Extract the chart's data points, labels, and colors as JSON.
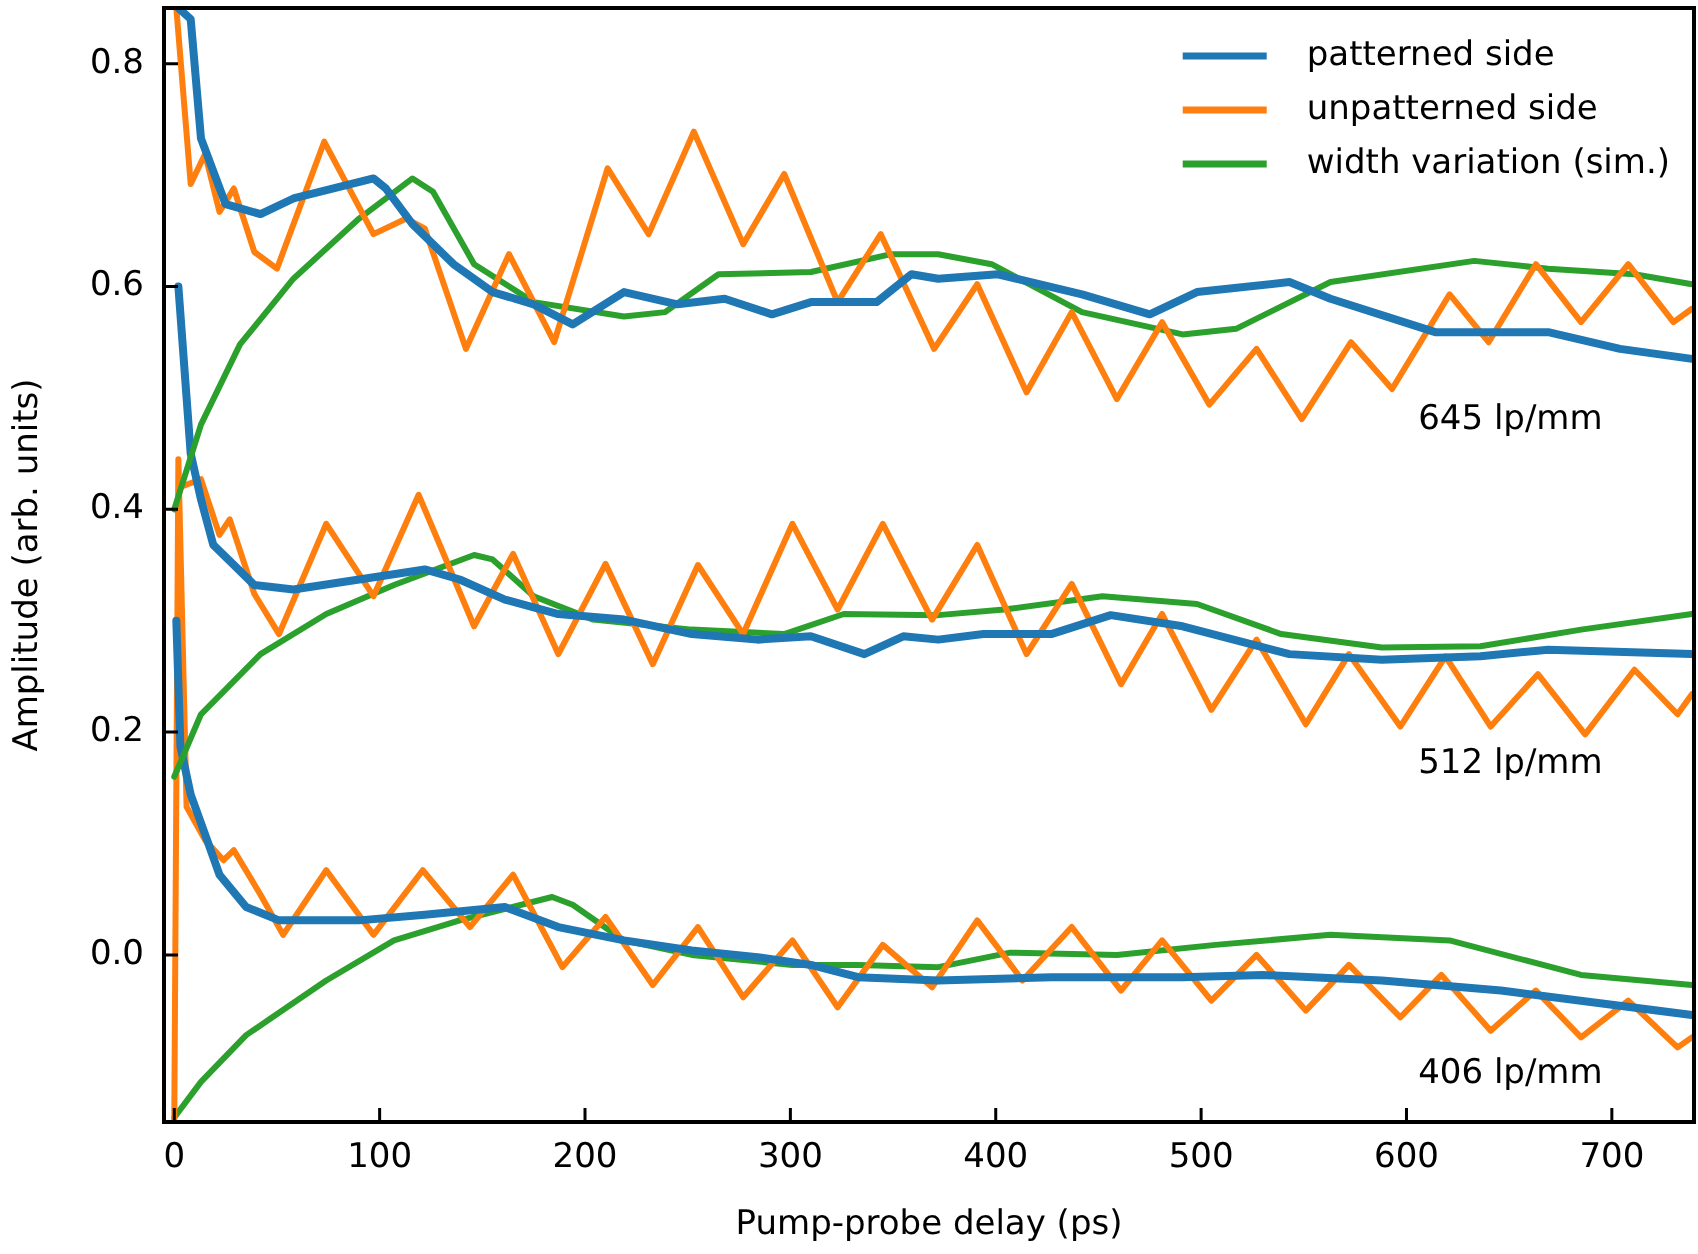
{
  "chart_data": {
    "type": "line",
    "xlabel": "Pump-probe delay (ps)",
    "ylabel": "Amplitude (arb. units)",
    "xlim": [
      -5,
      740
    ],
    "ylim": [
      -0.15,
      0.85
    ],
    "xticks": [
      0,
      100,
      200,
      300,
      400,
      500,
      600,
      700
    ],
    "yticks": [
      {
        "value": 0,
        "label": "0.0"
      },
      0.2,
      0.4,
      0.6,
      0.8
    ],
    "legend": "top right",
    "marker": "none",
    "line_style": "solid",
    "annotations": [
      "645 lp/mm",
      "512 lp/mm",
      "406 lp/mm"
    ],
    "series": [
      {
        "name": "patterned side",
        "color": "#1f77b4",
        "x": [
          2,
          8,
          13,
          25,
          42,
          58,
          97,
          103,
          116,
          136,
          155,
          175,
          194,
          219,
          245,
          268,
          291,
          310,
          342,
          359,
          372,
          401,
          442,
          475,
          498,
          543,
          563,
          614,
          669,
          704,
          739
        ],
        "values": [
          0.85,
          0.84,
          0.733,
          0.674,
          0.665,
          0.679,
          0.697,
          0.688,
          0.656,
          0.62,
          0.595,
          0.584,
          0.566,
          0.595,
          0.584,
          0.589,
          0.575,
          0.586,
          0.586,
          0.611,
          0.607,
          0.611,
          0.593,
          0.575,
          0.595,
          0.604,
          0.589,
          0.559,
          0.559,
          0.544,
          0.535
        ]
      },
      {
        "name": "unpatterned side",
        "color": "#ff7f0e",
        "x": [
          1,
          8,
          15,
          22,
          29,
          39,
          50,
          73,
          97,
          113,
          122,
          142,
          163,
          185,
          211,
          231,
          253,
          277,
          297,
          323,
          344,
          370,
          391,
          415,
          437,
          459,
          481,
          504,
          527,
          549,
          573,
          593,
          621,
          640,
          663,
          685,
          708,
          730,
          739
        ],
        "values": [
          0.85,
          0.692,
          0.719,
          0.667,
          0.688,
          0.631,
          0.616,
          0.73,
          0.647,
          0.661,
          0.652,
          0.544,
          0.629,
          0.55,
          0.706,
          0.647,
          0.739,
          0.638,
          0.701,
          0.586,
          0.647,
          0.544,
          0.602,
          0.505,
          0.577,
          0.499,
          0.568,
          0.494,
          0.544,
          0.481,
          0.55,
          0.508,
          0.593,
          0.55,
          0.62,
          0.568,
          0.62,
          0.568,
          0.58
        ]
      },
      {
        "name": "width variation (sim.)",
        "color": "#2ca02c",
        "x": [
          0,
          13,
          32,
          58,
          90,
          116,
          126,
          146,
          175,
          219,
          239,
          265,
          310,
          349,
          372,
          398,
          442,
          491,
          517,
          563,
          633,
          669,
          711,
          739
        ],
        "values": [
          0.4,
          0.476,
          0.548,
          0.607,
          0.661,
          0.697,
          0.685,
          0.62,
          0.586,
          0.573,
          0.577,
          0.611,
          0.613,
          0.629,
          0.629,
          0.62,
          0.577,
          0.557,
          0.562,
          0.604,
          0.623,
          0.616,
          0.611,
          0.602
        ]
      },
      {
        "color": "#1f77b4",
        "x": [
          2,
          8,
          13,
          19,
          39,
          58,
          90,
          122,
          139,
          161,
          187,
          219,
          252,
          284,
          310,
          336,
          355,
          372,
          394,
          427,
          456,
          491,
          543,
          588,
          636,
          669,
          739
        ],
        "values": [
          0.6,
          0.45,
          0.409,
          0.368,
          0.332,
          0.328,
          0.337,
          0.346,
          0.337,
          0.319,
          0.306,
          0.301,
          0.288,
          0.283,
          0.286,
          0.27,
          0.286,
          0.283,
          0.288,
          0.288,
          0.305,
          0.295,
          0.27,
          0.265,
          0.268,
          0.274,
          0.27
        ]
      },
      {
        "color": "#ff7f0e",
        "x": [
          3,
          13,
          22,
          27,
          39,
          51,
          74,
          97,
          119,
          146,
          165,
          187,
          210,
          233,
          255,
          277,
          301,
          323,
          345,
          369,
          391,
          415,
          437,
          461,
          481,
          505,
          527,
          551,
          572,
          597,
          619,
          641,
          664,
          687,
          711,
          732,
          739
        ],
        "values": [
          0.42,
          0.427,
          0.377,
          0.391,
          0.324,
          0.288,
          0.387,
          0.322,
          0.413,
          0.295,
          0.36,
          0.27,
          0.351,
          0.261,
          0.35,
          0.288,
          0.387,
          0.31,
          0.387,
          0.301,
          0.368,
          0.27,
          0.333,
          0.243,
          0.306,
          0.22,
          0.283,
          0.207,
          0.27,
          0.205,
          0.268,
          0.205,
          0.252,
          0.198,
          0.256,
          0.216,
          0.234
        ]
      },
      {
        "color": "#2ca02c",
        "x": [
          0,
          13,
          42,
          74,
          107,
          146,
          155,
          175,
          204,
          252,
          297,
          326,
          372,
          404,
          452,
          498,
          539,
          588,
          636,
          685,
          739
        ],
        "values": [
          0.16,
          0.216,
          0.27,
          0.306,
          0.332,
          0.359,
          0.355,
          0.322,
          0.301,
          0.292,
          0.288,
          0.306,
          0.305,
          0.31,
          0.322,
          0.315,
          0.288,
          0.276,
          0.277,
          0.292,
          0.306
        ]
      },
      {
        "color": "#1f77b4",
        "x": [
          1,
          3,
          8,
          16,
          22,
          35,
          51,
          90,
          122,
          161,
          187,
          219,
          252,
          284,
          310,
          333,
          372,
          427,
          459,
          491,
          530,
          588,
          646,
          701,
          739
        ],
        "values": [
          0.3,
          0.187,
          0.144,
          0.103,
          0.072,
          0.043,
          0.031,
          0.031,
          0.036,
          0.043,
          0.025,
          0.013,
          0.004,
          -0.002,
          -0.009,
          -0.02,
          -0.023,
          -0.02,
          -0.02,
          -0.02,
          -0.018,
          -0.023,
          -0.032,
          -0.045,
          -0.054
        ]
      },
      {
        "color": "#ff7f0e",
        "x": [
          0,
          2,
          6,
          15,
          24,
          29,
          42,
          53,
          74,
          97,
          121,
          144,
          165,
          189,
          210,
          233,
          255,
          277,
          301,
          323,
          345,
          369,
          391,
          413,
          437,
          461,
          481,
          505,
          527,
          551,
          572,
          597,
          617,
          641,
          663,
          685,
          708,
          732,
          739
        ],
        "values": [
          -0.15,
          0.445,
          0.133,
          0.103,
          0.085,
          0.094,
          0.054,
          0.018,
          0.076,
          0.018,
          0.076,
          0.025,
          0.072,
          -0.011,
          0.034,
          -0.027,
          0.025,
          -0.038,
          0.013,
          -0.047,
          0.009,
          -0.029,
          0.031,
          -0.023,
          0.025,
          -0.032,
          0.013,
          -0.041,
          0,
          -0.05,
          -0.009,
          -0.056,
          -0.018,
          -0.068,
          -0.032,
          -0.074,
          -0.041,
          -0.083,
          -0.074
        ]
      },
      {
        "color": "#2ca02c",
        "x": [
          0,
          13,
          35,
          74,
          107,
          139,
          184,
          194,
          219,
          252,
          301,
          333,
          372,
          407,
          459,
          507,
          563,
          621,
          685,
          739
        ],
        "values": [
          -0.146,
          -0.114,
          -0.072,
          -0.023,
          0.013,
          0.031,
          0.052,
          0.045,
          0.013,
          0,
          -0.009,
          -0.009,
          -0.011,
          0.002,
          0,
          0.009,
          0.018,
          0.013,
          -0.018,
          -0.027
        ]
      }
    ]
  }
}
